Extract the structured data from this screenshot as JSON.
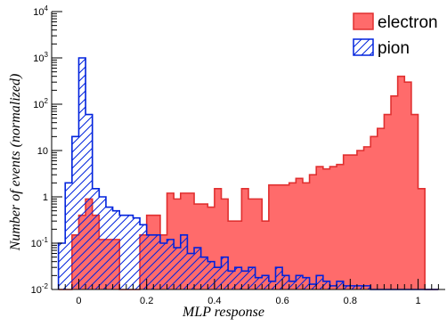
{
  "chart_data": {
    "type": "histogram",
    "xlabel": "MLP response",
    "ylabel": "Number of events (normalized)",
    "xlim": [
      -0.08,
      1.08
    ],
    "ylim": [
      0.01,
      10000
    ],
    "log_y": true,
    "grid": false,
    "legend_placement": "top-right",
    "bin_edges": [
      -0.06,
      -0.04,
      -0.02,
      0.0,
      0.02,
      0.04,
      0.06,
      0.08,
      0.1,
      0.12,
      0.14,
      0.16,
      0.18,
      0.2,
      0.22,
      0.24,
      0.26,
      0.28,
      0.3,
      0.32,
      0.34,
      0.36,
      0.38,
      0.4,
      0.42,
      0.44,
      0.46,
      0.48,
      0.5,
      0.52,
      0.54,
      0.56,
      0.58,
      0.6,
      0.62,
      0.64,
      0.66,
      0.68,
      0.7,
      0.72,
      0.74,
      0.76,
      0.78,
      0.8,
      0.82,
      0.84,
      0.86,
      0.88,
      0.9,
      0.92,
      0.94,
      0.96,
      0.98,
      1.0,
      1.02,
      1.04,
      1.06
    ],
    "series": [
      {
        "name": "electron",
        "style": "filled",
        "color": "#ff6b6b",
        "values": [
          0.01,
          0.01,
          0.15,
          0.4,
          0.9,
          0.4,
          0.12,
          0.12,
          0.12,
          0.01,
          0.01,
          0.01,
          0.15,
          0.4,
          0.4,
          0.15,
          1.2,
          0.9,
          1.2,
          1.2,
          0.7,
          0.7,
          0.6,
          1.5,
          0.9,
          0.3,
          0.3,
          1.5,
          0.9,
          0.9,
          0.3,
          1.8,
          1.8,
          1.8,
          2.0,
          2.5,
          2.0,
          3.0,
          4.5,
          4.0,
          4.5,
          5.0,
          8.0,
          8.0,
          10,
          12,
          20,
          30,
          60,
          150,
          400,
          300,
          60,
          1.5,
          0.01,
          0.01
        ]
      },
      {
        "name": "pion",
        "style": "hatched",
        "color": "#0022dd",
        "values": [
          0.1,
          2.0,
          20,
          1000,
          60,
          1.5,
          1.0,
          0.6,
          0.5,
          0.4,
          0.4,
          0.35,
          0.25,
          0.15,
          0.15,
          0.1,
          0.12,
          0.08,
          0.15,
          0.06,
          0.08,
          0.05,
          0.04,
          0.03,
          0.05,
          0.025,
          0.03,
          0.025,
          0.03,
          0.018,
          0.02,
          0.015,
          0.03,
          0.02,
          0.015,
          0.02,
          0.018,
          0.013,
          0.02,
          0.015,
          0.012,
          0.015,
          0.012,
          0.012,
          0.012,
          0.012,
          0.01,
          0.01,
          0.01,
          0.01,
          0.01,
          0.01,
          0.01,
          0.01,
          0.01,
          0.01
        ]
      }
    ],
    "y_ticks": [
      {
        "value": 0.01,
        "label_base": "10",
        "label_exp": "-2"
      },
      {
        "value": 0.1,
        "label_base": "10",
        "label_exp": "-1"
      },
      {
        "value": 1,
        "label": "1"
      },
      {
        "value": 10,
        "label": "10"
      },
      {
        "value": 100,
        "label_base": "10",
        "label_exp": "2"
      },
      {
        "value": 1000,
        "label_base": "10",
        "label_exp": "3"
      },
      {
        "value": 10000,
        "label_base": "10",
        "label_exp": "4"
      }
    ],
    "x_ticks": [
      {
        "value": 0,
        "label": "0"
      },
      {
        "value": 0.2,
        "label": "0.2"
      },
      {
        "value": 0.4,
        "label": "0.4"
      },
      {
        "value": 0.6,
        "label": "0.6"
      },
      {
        "value": 0.8,
        "label": "0.8"
      },
      {
        "value": 1.0,
        "label": "1"
      }
    ]
  }
}
